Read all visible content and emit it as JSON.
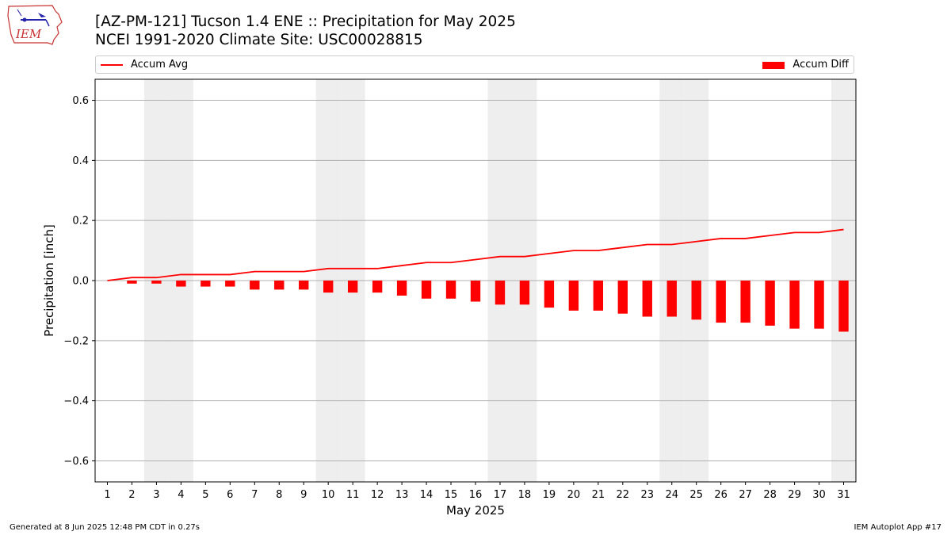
{
  "header": {
    "title": "[AZ-PM-121] Tucson 1.4 ENE :: Precipitation for May 2025",
    "subtitle": "NCEI 1991-2020 Climate Site: USC00028815"
  },
  "logo": {
    "text": "IEM",
    "icon": "iem-iowa-logo"
  },
  "legend": {
    "line_label": "Accum Avg",
    "bar_label": "Accum Diff",
    "placement": "top (above plot)"
  },
  "footer": {
    "generated": "Generated at 8 Jun 2025 12:48 PM CDT in 0.27s",
    "app": "IEM Autoplot App #17"
  },
  "colors": {
    "series": "#ff0000",
    "weekend_shade": "#eeeeee",
    "grid": "#b0b0b0"
  },
  "chart_data": {
    "type": "bar",
    "xlabel": "May 2025",
    "ylabel": "Precipitation [inch]",
    "ylim": [
      -0.67,
      0.67
    ],
    "yticks": [
      -0.6,
      -0.4,
      -0.2,
      0.0,
      0.2,
      0.4,
      0.6
    ],
    "ytick_labels": [
      "−0.6",
      "−0.4",
      "−0.2",
      "0.0",
      "0.2",
      "0.4",
      "0.6"
    ],
    "xlim": [
      0.5,
      31.5
    ],
    "categories": [
      1,
      2,
      3,
      4,
      5,
      6,
      7,
      8,
      9,
      10,
      11,
      12,
      13,
      14,
      15,
      16,
      17,
      18,
      19,
      20,
      21,
      22,
      23,
      24,
      25,
      26,
      27,
      28,
      29,
      30,
      31
    ],
    "grid": "horizontal",
    "shaded_days": [
      3,
      4,
      10,
      11,
      17,
      18,
      24,
      25,
      31
    ],
    "series": [
      {
        "name": "Accum Avg",
        "type": "line",
        "values": [
          0.0,
          0.01,
          0.01,
          0.02,
          0.02,
          0.02,
          0.03,
          0.03,
          0.03,
          0.04,
          0.04,
          0.04,
          0.05,
          0.06,
          0.06,
          0.07,
          0.08,
          0.08,
          0.09,
          0.1,
          0.1,
          0.11,
          0.12,
          0.12,
          0.13,
          0.14,
          0.14,
          0.15,
          0.16,
          0.16,
          0.17
        ]
      },
      {
        "name": "Accum Diff",
        "type": "bar",
        "values": [
          0.0,
          -0.01,
          -0.01,
          -0.02,
          -0.02,
          -0.02,
          -0.03,
          -0.03,
          -0.03,
          -0.04,
          -0.04,
          -0.04,
          -0.05,
          -0.06,
          -0.06,
          -0.07,
          -0.08,
          -0.08,
          -0.09,
          -0.1,
          -0.1,
          -0.11,
          -0.12,
          -0.12,
          -0.13,
          -0.14,
          -0.14,
          -0.15,
          -0.16,
          -0.16,
          -0.17
        ]
      }
    ]
  }
}
